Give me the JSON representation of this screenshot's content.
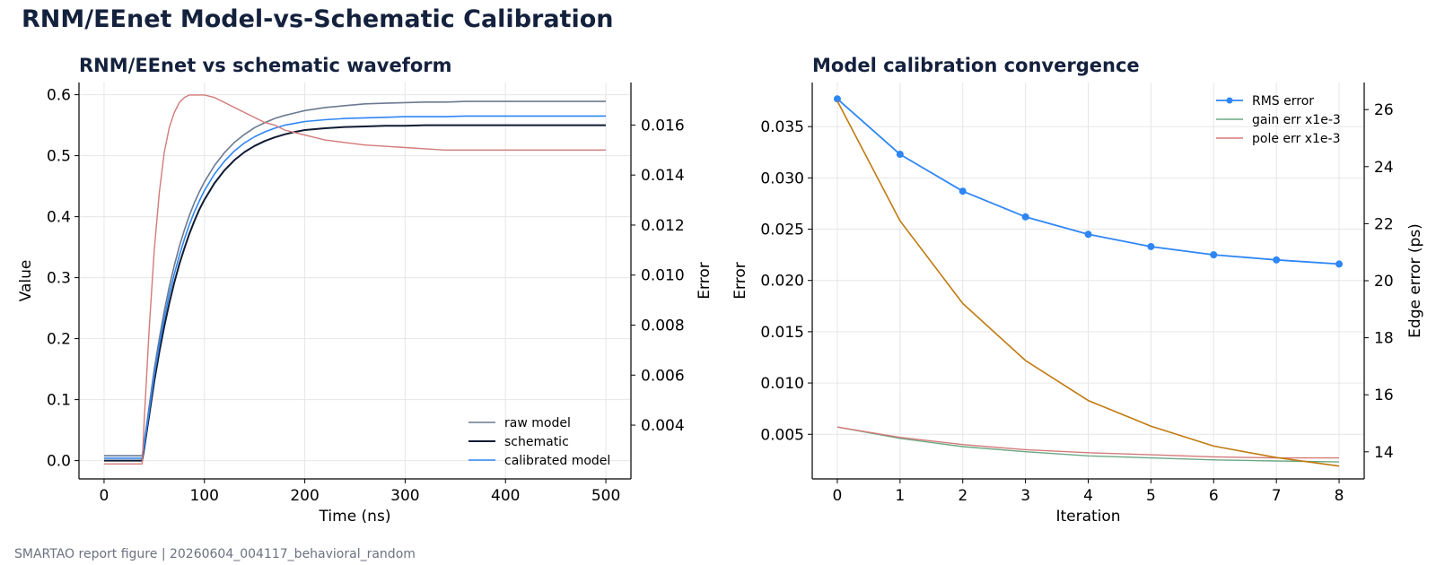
{
  "figure": {
    "title": "RNM/EEnet Model-vs-Schematic Calibration",
    "footer": "SMARTAO report figure | 20260604_004117_behavioral_random"
  },
  "colors": {
    "raw_model": "#6b7a90",
    "schematic": "#0f1b33",
    "calibrated_model": "#2e86f5",
    "error_trace": "#d47a7a",
    "rms_error": "#2e86f5",
    "gain_err": "#6aa884",
    "pole_err": "#d47a7a",
    "edge_error": "#c07a10",
    "title_text": "#14213d"
  },
  "chart_data": [
    {
      "type": "line",
      "title": "RNM/EEnet vs schematic waveform",
      "xlabel": "Time (ns)",
      "ylabel": "Value",
      "y2label": "Error",
      "xlim": [
        -25,
        525
      ],
      "ylim": [
        -0.03,
        0.62
      ],
      "y2lim": [
        0.00185,
        0.0177
      ],
      "xticks": [
        0,
        100,
        200,
        300,
        400,
        500
      ],
      "yticks": [
        0.0,
        0.1,
        0.2,
        0.3,
        0.4,
        0.5,
        0.6
      ],
      "y2ticks": [
        0.004,
        0.006,
        0.008,
        0.01,
        0.012,
        0.014,
        0.016
      ],
      "grid": true,
      "legend_position": "lower-right",
      "x": [
        0,
        10,
        20,
        30,
        38,
        40,
        45,
        50,
        55,
        60,
        65,
        70,
        75,
        80,
        85,
        90,
        95,
        100,
        110,
        120,
        130,
        140,
        150,
        160,
        170,
        180,
        190,
        200,
        220,
        240,
        260,
        280,
        300,
        320,
        340,
        360,
        380,
        400,
        420,
        440,
        460,
        480,
        500
      ],
      "series": [
        {
          "name": "raw model",
          "axis": "left",
          "values": [
            0.008,
            0.008,
            0.008,
            0.008,
            0.008,
            0.03,
            0.09,
            0.15,
            0.2,
            0.245,
            0.285,
            0.32,
            0.351,
            0.378,
            0.402,
            0.423,
            0.441,
            0.457,
            0.484,
            0.505,
            0.522,
            0.535,
            0.546,
            0.554,
            0.561,
            0.566,
            0.57,
            0.574,
            0.579,
            0.582,
            0.585,
            0.586,
            0.587,
            0.588,
            0.588,
            0.589,
            0.589,
            0.589,
            0.589,
            0.589,
            0.589,
            0.589,
            0.589
          ]
        },
        {
          "name": "schematic",
          "axis": "left",
          "values": [
            0.0,
            0.0,
            0.0,
            0.0,
            0.0,
            0.02,
            0.075,
            0.13,
            0.178,
            0.22,
            0.258,
            0.292,
            0.322,
            0.348,
            0.372,
            0.393,
            0.412,
            0.428,
            0.455,
            0.476,
            0.493,
            0.506,
            0.516,
            0.524,
            0.53,
            0.535,
            0.539,
            0.542,
            0.545,
            0.547,
            0.548,
            0.549,
            0.549,
            0.55,
            0.55,
            0.55,
            0.55,
            0.55,
            0.55,
            0.55,
            0.55,
            0.55,
            0.55
          ]
        },
        {
          "name": "calibrated model",
          "axis": "left",
          "values": [
            0.004,
            0.004,
            0.004,
            0.004,
            0.004,
            0.025,
            0.082,
            0.14,
            0.19,
            0.233,
            0.272,
            0.306,
            0.336,
            0.363,
            0.387,
            0.408,
            0.426,
            0.443,
            0.47,
            0.491,
            0.508,
            0.521,
            0.531,
            0.539,
            0.545,
            0.55,
            0.553,
            0.556,
            0.559,
            0.561,
            0.562,
            0.563,
            0.564,
            0.564,
            0.564,
            0.565,
            0.565,
            0.565,
            0.565,
            0.565,
            0.565,
            0.565,
            0.565
          ]
        },
        {
          "axis": "right",
          "values": [
            0.00245,
            0.00245,
            0.00245,
            0.00245,
            0.00245,
            0.0042,
            0.0079,
            0.011,
            0.0133,
            0.0149,
            0.0159,
            0.0165,
            0.0169,
            0.0171,
            0.0172,
            0.0172,
            0.0172,
            0.0172,
            0.0171,
            0.0169,
            0.0167,
            0.0165,
            0.0163,
            0.0161,
            0.016,
            0.0158,
            0.0157,
            0.0156,
            0.0154,
            0.0153,
            0.0152,
            0.01515,
            0.0151,
            0.01505,
            0.015,
            0.015,
            0.015,
            0.015,
            0.015,
            0.015,
            0.015,
            0.015,
            0.015
          ]
        }
      ]
    },
    {
      "type": "line",
      "title": "Model calibration convergence",
      "xlabel": "Iteration",
      "ylabel": "Error",
      "y2label": "Edge error (ps)",
      "xlim": [
        -0.4,
        8.4
      ],
      "ylim": [
        0.00065,
        0.0393
      ],
      "y2lim": [
        13.05,
        26.95
      ],
      "xticks": [
        0,
        1,
        2,
        3,
        4,
        5,
        6,
        7,
        8
      ],
      "yticks": [
        0.005,
        0.01,
        0.015,
        0.02,
        0.025,
        0.03,
        0.035
      ],
      "y2ticks": [
        14,
        16,
        18,
        20,
        22,
        24,
        26
      ],
      "grid": true,
      "legend_position": "upper-right",
      "x": [
        0,
        1,
        2,
        3,
        4,
        5,
        6,
        7,
        8
      ],
      "series": [
        {
          "name": "RMS error",
          "axis": "left",
          "marker": "circle",
          "values": [
            0.0377,
            0.0323,
            0.0287,
            0.0262,
            0.0245,
            0.0233,
            0.0225,
            0.022,
            0.0216
          ]
        },
        {
          "name": "gain err x1e-3",
          "axis": "left",
          "values": [
            0.0057,
            0.0046,
            0.0038,
            0.0033,
            0.0029,
            0.0027,
            0.0025,
            0.0024,
            0.0023
          ]
        },
        {
          "name": "pole err x1e-3",
          "axis": "left",
          "values": [
            0.0057,
            0.0047,
            0.004,
            0.0035,
            0.0032,
            0.003,
            0.0028,
            0.0027,
            0.0027
          ]
        },
        {
          "axis": "right",
          "values": [
            26.3,
            22.1,
            19.2,
            17.2,
            15.8,
            14.9,
            14.2,
            13.8,
            13.5
          ]
        }
      ]
    }
  ]
}
